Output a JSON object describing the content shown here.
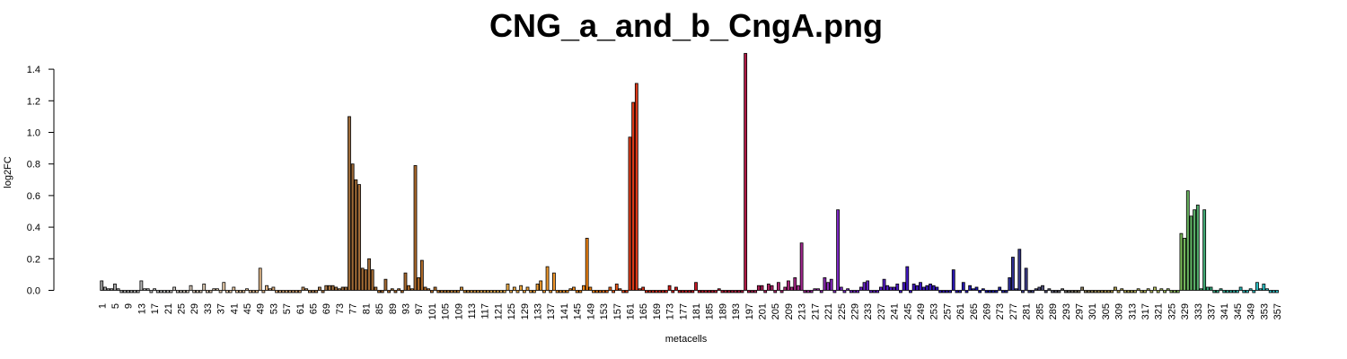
{
  "chart_data": {
    "type": "bar",
    "title": "CNG_a_and_b_CngA.png",
    "xlabel": "metacells",
    "ylabel": "log2FC",
    "ylim": [
      0,
      1.5
    ],
    "xlim": [
      1,
      357
    ],
    "grid": false,
    "legend": "none",
    "y_ticks": [
      "0.0",
      "0.2",
      "0.4",
      "0.6",
      "0.8",
      "1.0",
      "1.2",
      "1.4"
    ],
    "x_tick_labels": [
      "1",
      "5",
      "9",
      "13",
      "17",
      "21",
      "25",
      "29",
      "33",
      "37",
      "41",
      "45",
      "49",
      "53",
      "57",
      "61",
      "65",
      "69",
      "73",
      "77",
      "81",
      "85",
      "89",
      "93",
      "97",
      "101",
      "105",
      "109",
      "113",
      "117",
      "121",
      "125",
      "129",
      "133",
      "137",
      "141",
      "145",
      "149",
      "153",
      "157",
      "161",
      "165",
      "169",
      "173",
      "177",
      "181",
      "185",
      "189",
      "193",
      "197",
      "201",
      "205",
      "209",
      "213",
      "217",
      "221",
      "225",
      "229",
      "233",
      "237",
      "241",
      "245",
      "249",
      "253",
      "257",
      "261",
      "265",
      "269",
      "273",
      "277",
      "281",
      "285",
      "289",
      "293",
      "297",
      "301",
      "305",
      "309",
      "313",
      "317",
      "321",
      "325",
      "329",
      "333",
      "337",
      "341",
      "345",
      "349",
      "353",
      "357"
    ],
    "points": [
      [
        1,
        0.06
      ],
      [
        2,
        0.02
      ],
      [
        3,
        0.01
      ],
      [
        4,
        0.01
      ],
      [
        5,
        0.04
      ],
      [
        6,
        0.01
      ],
      [
        13,
        0.06
      ],
      [
        14,
        0.01
      ],
      [
        15,
        0.01
      ],
      [
        17,
        0.01
      ],
      [
        23,
        0.02
      ],
      [
        28,
        0.03
      ],
      [
        32,
        0.04
      ],
      [
        35,
        0.01
      ],
      [
        36,
        0.01
      ],
      [
        38,
        0.05
      ],
      [
        41,
        0.02
      ],
      [
        45,
        0.01
      ],
      [
        49,
        0.14
      ],
      [
        51,
        0.03
      ],
      [
        52,
        0.01
      ],
      [
        53,
        0.02
      ],
      [
        62,
        0.02
      ],
      [
        63,
        0.01
      ],
      [
        67,
        0.02
      ],
      [
        69,
        0.03
      ],
      [
        70,
        0.03
      ],
      [
        71,
        0.03
      ],
      [
        72,
        0.02
      ],
      [
        73,
        0.01
      ],
      [
        74,
        0.02
      ],
      [
        75,
        0.02
      ],
      [
        76,
        1.1
      ],
      [
        77,
        0.8
      ],
      [
        78,
        0.7
      ],
      [
        79,
        0.67
      ],
      [
        80,
        0.14
      ],
      [
        81,
        0.13
      ],
      [
        82,
        0.2
      ],
      [
        83,
        0.13
      ],
      [
        84,
        0.02
      ],
      [
        87,
        0.07
      ],
      [
        89,
        0.01
      ],
      [
        91,
        0.01
      ],
      [
        93,
        0.11
      ],
      [
        94,
        0.03
      ],
      [
        95,
        0.01
      ],
      [
        96,
        0.79
      ],
      [
        97,
        0.08
      ],
      [
        98,
        0.19
      ],
      [
        99,
        0.02
      ],
      [
        100,
        0.01
      ],
      [
        102,
        0.02
      ],
      [
        110,
        0.02
      ],
      [
        124,
        0.04
      ],
      [
        126,
        0.02
      ],
      [
        128,
        0.03
      ],
      [
        130,
        0.02
      ],
      [
        133,
        0.04
      ],
      [
        134,
        0.06
      ],
      [
        136,
        0.15
      ],
      [
        138,
        0.11
      ],
      [
        143,
        0.01
      ],
      [
        144,
        0.02
      ],
      [
        147,
        0.03
      ],
      [
        148,
        0.33
      ],
      [
        149,
        0.02
      ],
      [
        155,
        0.02
      ],
      [
        157,
        0.04
      ],
      [
        158,
        0.01
      ],
      [
        161,
        0.97
      ],
      [
        162,
        1.19
      ],
      [
        163,
        1.31
      ],
      [
        164,
        0.01
      ],
      [
        165,
        0.02
      ],
      [
        173,
        0.03
      ],
      [
        175,
        0.02
      ],
      [
        181,
        0.05
      ],
      [
        188,
        0.01
      ],
      [
        196,
        1.5
      ],
      [
        200,
        0.03
      ],
      [
        201,
        0.03
      ],
      [
        203,
        0.04
      ],
      [
        204,
        0.03
      ],
      [
        206,
        0.05
      ],
      [
        208,
        0.02
      ],
      [
        209,
        0.06
      ],
      [
        210,
        0.02
      ],
      [
        211,
        0.08
      ],
      [
        212,
        0.03
      ],
      [
        213,
        0.3
      ],
      [
        217,
        0.01
      ],
      [
        218,
        0.01
      ],
      [
        220,
        0.08
      ],
      [
        221,
        0.05
      ],
      [
        222,
        0.07
      ],
      [
        224,
        0.51
      ],
      [
        225,
        0.02
      ],
      [
        227,
        0.01
      ],
      [
        231,
        0.02
      ],
      [
        232,
        0.05
      ],
      [
        233,
        0.06
      ],
      [
        237,
        0.02
      ],
      [
        238,
        0.07
      ],
      [
        239,
        0.03
      ],
      [
        240,
        0.02
      ],
      [
        241,
        0.02
      ],
      [
        242,
        0.04
      ],
      [
        244,
        0.05
      ],
      [
        245,
        0.15
      ],
      [
        247,
        0.04
      ],
      [
        248,
        0.03
      ],
      [
        249,
        0.05
      ],
      [
        250,
        0.02
      ],
      [
        251,
        0.03
      ],
      [
        252,
        0.04
      ],
      [
        253,
        0.03
      ],
      [
        254,
        0.02
      ],
      [
        259,
        0.13
      ],
      [
        262,
        0.05
      ],
      [
        264,
        0.03
      ],
      [
        265,
        0.01
      ],
      [
        266,
        0.02
      ],
      [
        268,
        0.01
      ],
      [
        273,
        0.02
      ],
      [
        276,
        0.08
      ],
      [
        277,
        0.21
      ],
      [
        278,
        0.01
      ],
      [
        279,
        0.26
      ],
      [
        281,
        0.14
      ],
      [
        284,
        0.01
      ],
      [
        285,
        0.02
      ],
      [
        286,
        0.03
      ],
      [
        288,
        0.01
      ],
      [
        292,
        0.01
      ],
      [
        298,
        0.02
      ],
      [
        308,
        0.02
      ],
      [
        310,
        0.01
      ],
      [
        315,
        0.01
      ],
      [
        318,
        0.01
      ],
      [
        320,
        0.02
      ],
      [
        322,
        0.01
      ],
      [
        324,
        0.01
      ],
      [
        328,
        0.36
      ],
      [
        329,
        0.33
      ],
      [
        330,
        0.63
      ],
      [
        331,
        0.47
      ],
      [
        332,
        0.51
      ],
      [
        333,
        0.54
      ],
      [
        334,
        0.01
      ],
      [
        335,
        0.51
      ],
      [
        336,
        0.02
      ],
      [
        337,
        0.02
      ],
      [
        340,
        0.01
      ],
      [
        346,
        0.02
      ],
      [
        349,
        0.01
      ],
      [
        351,
        0.05
      ],
      [
        352,
        0.01
      ],
      [
        353,
        0.04
      ],
      [
        354,
        0.01
      ]
    ]
  }
}
